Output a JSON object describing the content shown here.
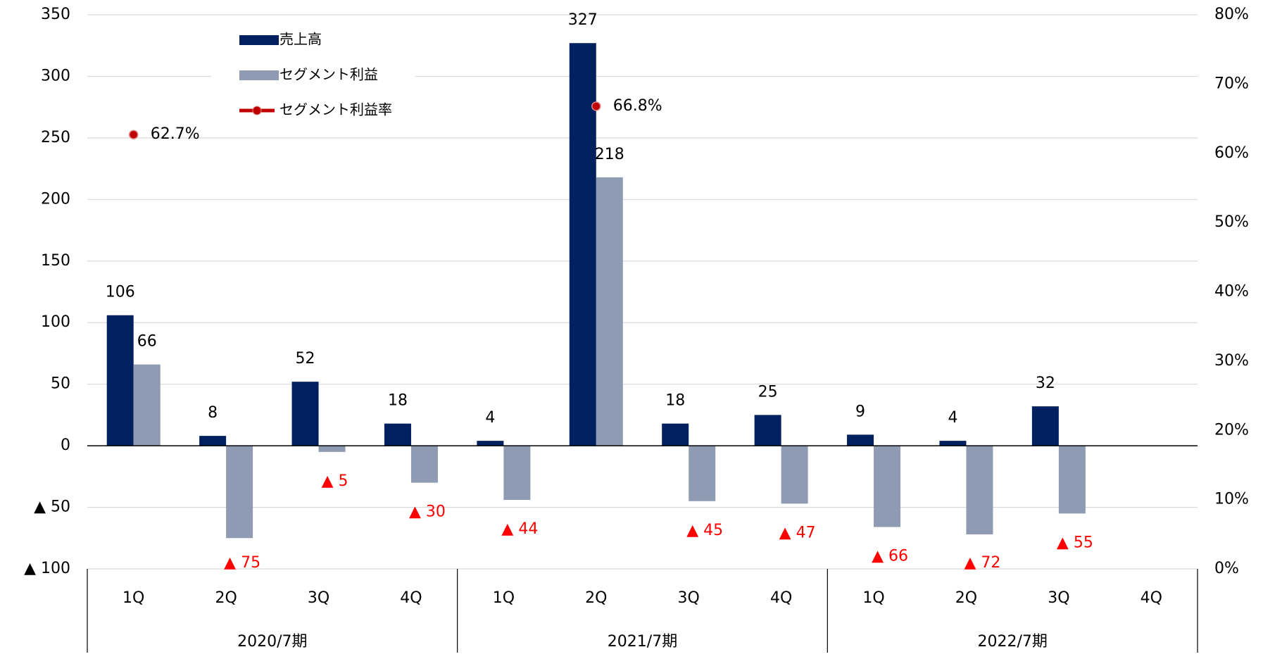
{
  "chart_data": {
    "type": "bar",
    "categories": [
      "1Q",
      "2Q",
      "3Q",
      "4Q",
      "1Q",
      "2Q",
      "3Q",
      "4Q",
      "1Q",
      "2Q",
      "3Q",
      "4Q"
    ],
    "groups": [
      {
        "name": "2020/7期",
        "span": 4
      },
      {
        "name": "2021/7期",
        "span": 4
      },
      {
        "name": "2022/7期",
        "span": 4
      }
    ],
    "series": [
      {
        "name": "売上高",
        "color": "#002060",
        "values": [
          106,
          8,
          52,
          18,
          4,
          327,
          18,
          25,
          9,
          4,
          32,
          null
        ]
      },
      {
        "name": "セグメント利益",
        "color": "#8e9bb2",
        "values": [
          66,
          -75,
          -5,
          -30,
          -44,
          218,
          -45,
          -47,
          -66,
          -72,
          -55,
          null
        ],
        "value_labels": [
          "66",
          "▲ 75",
          "▲ 5",
          "▲ 30",
          "▲ 44",
          "218",
          "▲ 45",
          "▲ 47",
          "▲ 66",
          "▲ 72",
          "▲ 55",
          null
        ]
      },
      {
        "name": "セグメント利益率",
        "color": "#c00000",
        "type": "line",
        "axis": "y2",
        "values": [
          62.7,
          null,
          null,
          null,
          null,
          66.8,
          null,
          null,
          null,
          null,
          null,
          null
        ],
        "value_labels": [
          "62.7%",
          null,
          null,
          null,
          null,
          "66.8%",
          null,
          null,
          null,
          null,
          null,
          null
        ]
      }
    ],
    "ylim": [
      -100,
      350
    ],
    "yticks": [
      {
        "value": -100,
        "label": "▲ 100"
      },
      {
        "value": -50,
        "label": "▲ 50"
      },
      0,
      50,
      100,
      150,
      200,
      250,
      300,
      350
    ],
    "y2lim": [
      0,
      80
    ],
    "y2ticks": [
      {
        "value": 0,
        "label": "0%"
      },
      {
        "value": 10,
        "label": "10%"
      },
      {
        "value": 20,
        "label": "20%"
      },
      {
        "value": 30,
        "label": "30%"
      },
      {
        "value": 40,
        "label": "40%"
      },
      {
        "value": 50,
        "label": "50%"
      },
      {
        "value": 60,
        "label": "60%"
      },
      {
        "value": 70,
        "label": "70%"
      },
      {
        "value": 80,
        "label": "80%"
      }
    ],
    "grid": true,
    "legend": "top-left"
  }
}
